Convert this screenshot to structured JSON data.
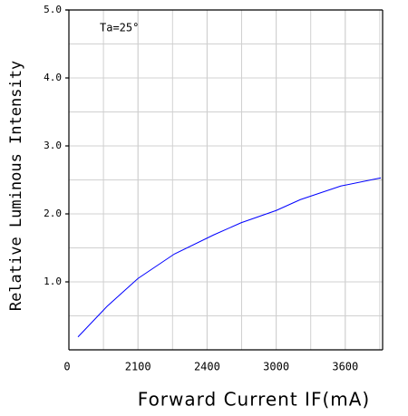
{
  "chart_data": {
    "type": "line",
    "annotation": "Ta=25°",
    "x_label": "Forward Current IF(mA)",
    "y_label": "Relative Luminous Intensity",
    "xlim": [
      0,
      3927
    ],
    "xticks": [
      0,
      2100,
      2400,
      3000,
      3600
    ],
    "ylim": [
      0,
      5
    ],
    "yticks": [
      {
        "value": 1,
        "label": "1.0"
      },
      {
        "value": 2,
        "label": "2.0"
      },
      {
        "value": 3,
        "label": "3.0"
      },
      {
        "value": 4,
        "label": "4.0"
      },
      {
        "value": 5,
        "label": "5.0"
      }
    ],
    "grid": true,
    "series": [
      {
        "color": "#0000ff",
        "x": [
          276,
          1160,
          2100,
          2258,
          2456,
          2696,
          3000,
          3210,
          3561,
          3912
        ],
        "values": [
          0.19,
          0.64,
          1.05,
          1.41,
          1.69,
          1.87,
          2.05,
          2.21,
          2.41,
          2.53
        ]
      }
    ]
  }
}
